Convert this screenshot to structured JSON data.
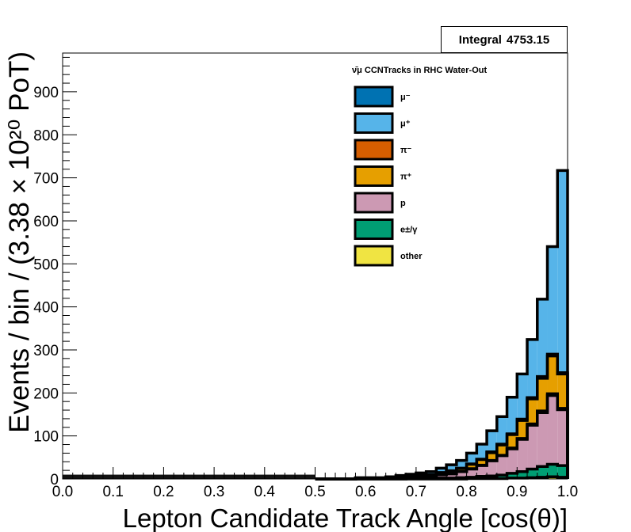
{
  "stats": {
    "label": "Integral",
    "value": "4753.15"
  },
  "chart_data": {
    "type": "bar",
    "stacked": true,
    "title": "ν̄μ CCNTracks in RHC Water-Out",
    "xlabel": "Lepton Candidate Track Angle [cos(θ)]",
    "ylabel": "Events / bin / (3.38 × 10²⁰ PoT)",
    "xlim": [
      0.0,
      1.0
    ],
    "ylim": [
      0,
      990
    ],
    "x_ticks": [
      "0.0",
      "0.1",
      "0.2",
      "0.3",
      "0.4",
      "0.5",
      "0.6",
      "0.7",
      "0.8",
      "0.9",
      "1.0"
    ],
    "y_ticks": [
      "0",
      "100",
      "200",
      "300",
      "400",
      "500",
      "600",
      "700",
      "800",
      "900"
    ],
    "grid": false,
    "legend_position": "top-right",
    "colors": {
      "mu_minus": "#0072b2",
      "mu_plus": "#56b4e9",
      "pi_minus": "#d55e00",
      "pi_plus": "#e69f00",
      "p": "#cc99b3",
      "e_gamma": "#009e73",
      "other": "#f0e442"
    },
    "bin_edges_note": "50 bins of width 0.02 from 0.0 to 1.0; series values are per-bin contributions",
    "series": [
      {
        "key": "other",
        "name": "other",
        "color": "#f0e442",
        "values": [
          0,
          0,
          0,
          0,
          0,
          0,
          0,
          0,
          0,
          0,
          0,
          0,
          0,
          0,
          0,
          0,
          0,
          0,
          0,
          0,
          0,
          0,
          0,
          0,
          0,
          0,
          0,
          0,
          0,
          0,
          0,
          0,
          0,
          0,
          0,
          0,
          0,
          0,
          0,
          0,
          1,
          1,
          1,
          1,
          2,
          2,
          3,
          4,
          5,
          4
        ]
      },
      {
        "key": "e_gamma",
        "name": "e±/γ",
        "color": "#009e73",
        "values": [
          0,
          0,
          0,
          0,
          0,
          0,
          0,
          0,
          0,
          0,
          0,
          0,
          0,
          0,
          0,
          0,
          0,
          0,
          0,
          0,
          0,
          0,
          0,
          0,
          0,
          0,
          0,
          0,
          0,
          0,
          0,
          0,
          0,
          0,
          1,
          1,
          1,
          2,
          2,
          3,
          3,
          5,
          6,
          8,
          11,
          15,
          20,
          25,
          29,
          27
        ]
      },
      {
        "key": "p",
        "name": "p",
        "color": "#cc99b3",
        "values": [
          0,
          0,
          0,
          0,
          0,
          0,
          0,
          0,
          0,
          0,
          0,
          0,
          0,
          0,
          0,
          0,
          0,
          0,
          0,
          0,
          0,
          0,
          0,
          0,
          0,
          0,
          0,
          0,
          0,
          1,
          1,
          1,
          2,
          3,
          4,
          5,
          6,
          8,
          10,
          14,
          19,
          25,
          35,
          45,
          57,
          75,
          102,
          125,
          160,
          130
        ]
      },
      {
        "key": "pi_minus",
        "name": "π⁻",
        "color": "#d55e00",
        "values": [
          0,
          0,
          0,
          0,
          0,
          0,
          0,
          0,
          0,
          0,
          0,
          0,
          0,
          0,
          0,
          0,
          0,
          0,
          0,
          0,
          0,
          0,
          0,
          0,
          0,
          0,
          0,
          0,
          0,
          0,
          0,
          0,
          0,
          0,
          0,
          0,
          0,
          0,
          0,
          0,
          1,
          1,
          1,
          1,
          2,
          2,
          3,
          4,
          4,
          3
        ]
      },
      {
        "key": "pi_plus",
        "name": "π⁺",
        "color": "#e69f00",
        "values": [
          0,
          0,
          0,
          0,
          0,
          0,
          0,
          0,
          0,
          0,
          0,
          0,
          0,
          0,
          0,
          0,
          0,
          0,
          0,
          0,
          0,
          0,
          0,
          0,
          0,
          0,
          0,
          0,
          0,
          1,
          1,
          1,
          1,
          2,
          2,
          2,
          3,
          4,
          6,
          7,
          10,
          13,
          18,
          24,
          31,
          42,
          58,
          76,
          88,
          80
        ]
      },
      {
        "key": "mu_minus",
        "name": "μ⁻",
        "color": "#0072b2",
        "values": [
          0,
          0,
          0,
          0,
          0,
          0,
          0,
          0,
          0,
          0,
          0,
          0,
          0,
          0,
          0,
          0,
          0,
          0,
          0,
          0,
          0,
          0,
          0,
          0,
          0,
          0,
          0,
          0,
          0,
          0,
          0,
          0,
          0,
          0,
          0,
          0,
          0,
          1,
          1,
          1,
          1,
          1,
          2,
          2,
          2,
          3,
          3,
          4,
          4,
          3
        ]
      },
      {
        "key": "mu_plus",
        "name": "μ⁺",
        "color": "#56b4e9",
        "values": [
          0,
          0,
          0,
          0,
          0,
          0,
          0,
          0,
          0,
          0,
          0,
          0,
          0,
          0,
          0,
          0,
          0,
          0,
          0,
          0,
          0,
          0,
          0,
          0,
          0,
          0,
          0,
          0,
          0,
          1,
          1,
          1,
          2,
          3,
          4,
          6,
          7,
          10,
          14,
          18,
          25,
          35,
          49,
          64,
          85,
          105,
          135,
          180,
          250,
          470
        ]
      }
    ],
    "legend_order": [
      "mu_minus",
      "mu_plus",
      "pi_minus",
      "pi_plus",
      "p",
      "e_gamma",
      "other"
    ],
    "low_region_fill_color": "#111111",
    "low_region_values_note": "cos(θ) from 0.0 to 0.5 drawn as solid black band",
    "low_region_values": [
      10,
      10,
      10,
      10,
      10,
      10,
      10,
      10,
      10,
      10,
      10,
      10,
      10,
      10,
      10,
      10,
      10,
      10,
      10,
      10,
      10,
      10,
      10,
      10,
      10
    ]
  }
}
